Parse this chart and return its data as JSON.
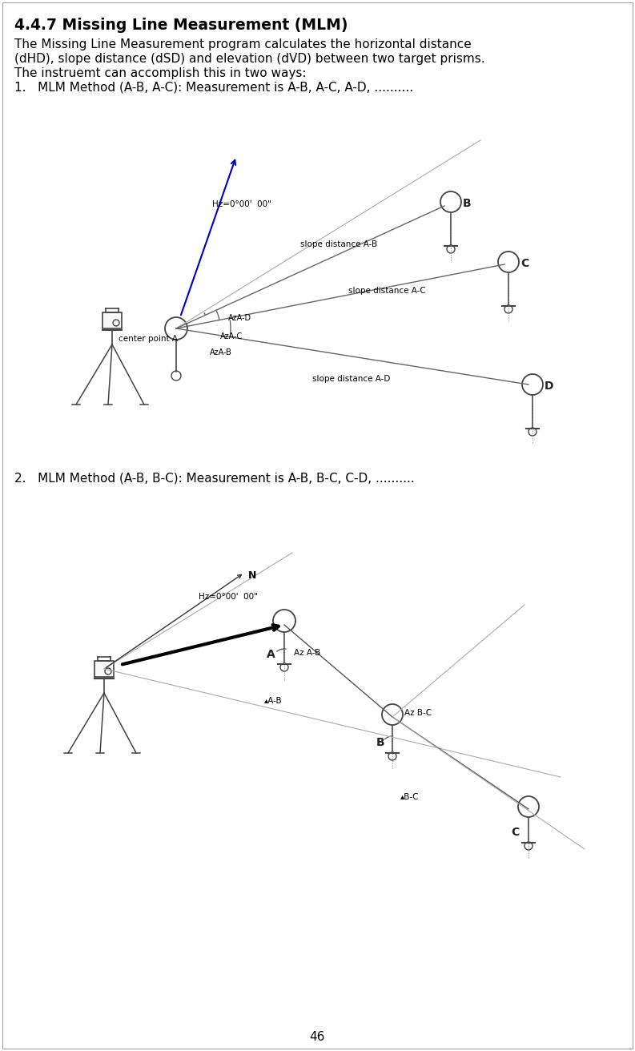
{
  "title": "4.4.7 Missing Line Measurement (MLM)",
  "line1": "The Missing Line Measurement program calculates the horizontal distance",
  "line2": "(dHD), slope distance (dSD) and elevation (dVD) between two target prisms.",
  "line3": "The instruemt can accomplish this in two ways:",
  "item1": "1.   MLM Method (A-B, A-C): Measurement is A-B, A-C, A-D, ..........",
  "item2": "2.   MLM Method (A-B, B-C): Measurement is A-B, B-C, C-D, ..........",
  "page_number": "46",
  "bg": "#ffffff"
}
